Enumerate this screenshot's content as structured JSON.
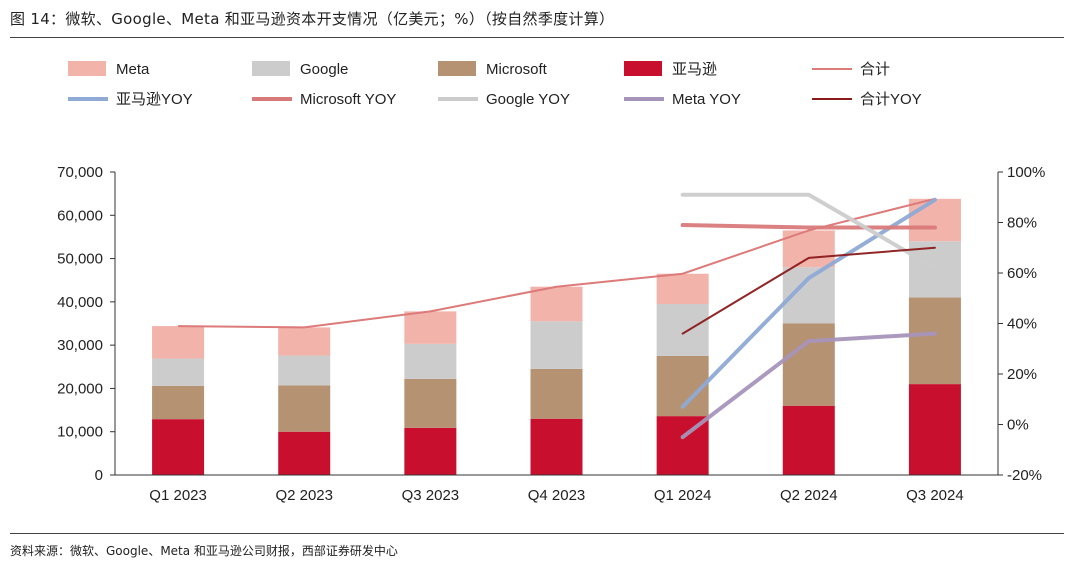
{
  "header": {
    "title": "图 14：微软、Google、Meta 和亚马逊资本开支情况（亿美元；%）（按自然季度计算）"
  },
  "footer": {
    "source": "资料来源：微软、Google、Meta 和亚马逊公司财报，西部证券研发中心"
  },
  "chart_data": {
    "type": "bar",
    "stacked": true,
    "categories": [
      "Q1 2023",
      "Q2 2023",
      "Q3 2023",
      "Q4 2023",
      "Q1 2024",
      "Q2 2024",
      "Q3 2024"
    ],
    "left_axis": {
      "ylim": [
        0,
        70000
      ],
      "ticks": [
        "0",
        "10,000",
        "20,000",
        "30,000",
        "40,000",
        "50,000",
        "60,000",
        "70,000"
      ]
    },
    "right_axis": {
      "ylim": [
        -20,
        100
      ],
      "ticks": [
        "-20%",
        "0%",
        "20%",
        "40%",
        "60%",
        "80%",
        "100%"
      ]
    },
    "bar_series": [
      {
        "name": "亚马逊",
        "color": "#c8102e",
        "values": [
          12900,
          10000,
          10900,
          13000,
          13600,
          16000,
          21000
        ]
      },
      {
        "name": "Microsoft",
        "color": "#b59272",
        "values": [
          7700,
          10700,
          11300,
          11500,
          13900,
          19000,
          20000
        ]
      },
      {
        "name": "Google",
        "color": "#cccccc",
        "values": [
          6300,
          6900,
          8100,
          11000,
          12000,
          13000,
          13000
        ]
      },
      {
        "name": "Meta",
        "color": "#f2b3ab",
        "values": [
          7500,
          6500,
          7500,
          8000,
          7000,
          8500,
          9800
        ]
      }
    ],
    "total_series": {
      "name": "合计",
      "color": "#dd7a7a",
      "values": [
        34400,
        34100,
        37800,
        43500,
        46500,
        56500,
        63800
      ]
    },
    "yoy_series": [
      {
        "name": "亚马逊YOY",
        "color": "#8faad5",
        "x_start": 4,
        "values": [
          7,
          58,
          89
        ]
      },
      {
        "name": "Microsoft YOY",
        "color": "#d97a7a",
        "x_start": 4,
        "values": [
          79,
          78,
          78
        ]
      },
      {
        "name": "Google YOY",
        "color": "#cccccc",
        "x_start": 4,
        "values": [
          91,
          91,
          62
        ]
      },
      {
        "name": "Meta YOY",
        "color": "#a695bb",
        "x_start": 4,
        "values": [
          -5,
          33,
          36
        ]
      },
      {
        "name": "合计YOY",
        "color": "#8b1a1a",
        "x_start": 4,
        "values": [
          36,
          66,
          70
        ]
      }
    ],
    "legend": [
      {
        "label": "Meta",
        "kind": "box",
        "color": "#f2b3ab"
      },
      {
        "label": "Google",
        "kind": "box",
        "color": "#cccccc"
      },
      {
        "label": "Microsoft",
        "kind": "box",
        "color": "#b59272"
      },
      {
        "label": "亚马逊",
        "kind": "box",
        "color": "#c8102e"
      },
      {
        "label": "合计",
        "kind": "line-thin",
        "color": "#dd7a7a"
      },
      {
        "label": "亚马逊YOY",
        "kind": "line",
        "color": "#8faad5"
      },
      {
        "label": "Microsoft YOY",
        "kind": "line",
        "color": "#d97a7a"
      },
      {
        "label": "Google YOY",
        "kind": "line",
        "color": "#cccccc"
      },
      {
        "label": "Meta YOY",
        "kind": "line",
        "color": "#a695bb"
      },
      {
        "label": "合计YOY",
        "kind": "line-thin",
        "color": "#8b1a1a"
      }
    ]
  }
}
